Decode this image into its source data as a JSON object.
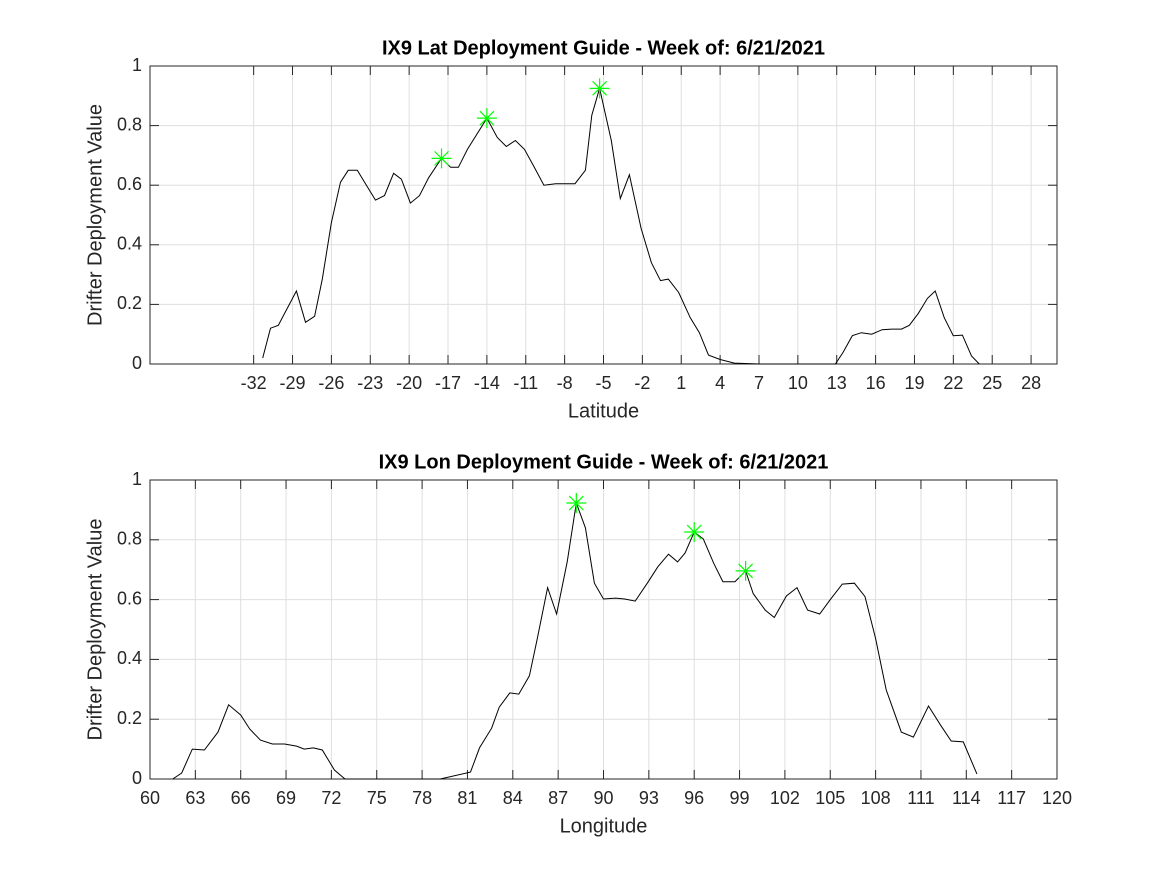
{
  "chart_data": [
    {
      "type": "line",
      "title": "IX9 Lat Deployment Guide - Week of: 6/21/2021",
      "x_label": "Latitude",
      "y_label": "Drifter Deployment Value",
      "xlim": [
        -40,
        30
      ],
      "xticks": [
        -32,
        -29,
        -26,
        -23,
        -20,
        -17,
        -14,
        -11,
        -8,
        -5,
        -2,
        1,
        4,
        7,
        10,
        13,
        16,
        19,
        22,
        25,
        28
      ],
      "ylim": [
        0,
        1
      ],
      "yticks": [
        0,
        0.2,
        0.4,
        0.6,
        0.8,
        1
      ],
      "grid": true,
      "series": [
        {
          "color": "#000000",
          "marker": "none",
          "x": [
            -31.3,
            -30.7,
            -30.1,
            -28.7,
            -28.0,
            -27.3,
            -26.7,
            -26.0,
            -25.3,
            -24.7,
            -24.0,
            -23.3,
            -22.6,
            -21.9,
            -21.2,
            -20.6,
            -19.9,
            -19.2,
            -18.5,
            -17.5,
            -16.8,
            -16.2,
            -15.5,
            -14.0,
            -13.2,
            -12.5,
            -11.8,
            -11.1,
            -10.4,
            -9.6,
            -8.7,
            -7.8,
            -7.2,
            -6.4,
            -5.9,
            -5.3,
            -4.4,
            -3.7,
            -3.0,
            -2.1,
            -1.3,
            -0.6,
            0.0,
            0.8,
            1.7,
            2.4,
            3.1,
            4.0,
            5.1,
            7.0,
            9.0,
            12.9,
            13.5,
            14.2,
            14.9,
            15.7,
            16.5,
            17.3,
            18.0,
            18.6,
            19.3,
            20.0,
            20.6,
            21.3,
            22.0,
            22.7,
            23.4,
            24.0
          ],
          "values": [
            0.02,
            0.12,
            0.13,
            0.245,
            0.14,
            0.16,
            0.285,
            0.475,
            0.61,
            0.65,
            0.65,
            0.6,
            0.55,
            0.565,
            0.64,
            0.62,
            0.54,
            0.565,
            0.625,
            0.69,
            0.66,
            0.66,
            0.72,
            0.825,
            0.76,
            0.73,
            0.75,
            0.72,
            0.665,
            0.6,
            0.605,
            0.605,
            0.605,
            0.65,
            0.835,
            0.925,
            0.75,
            0.555,
            0.635,
            0.455,
            0.34,
            0.28,
            0.285,
            0.24,
            0.155,
            0.105,
            0.03,
            0.015,
            0.003,
            0,
            0,
            0,
            0.04,
            0.095,
            0.105,
            0.1,
            0.115,
            0.117,
            0.117,
            0.13,
            0.17,
            0.22,
            0.245,
            0.155,
            0.095,
            0.097,
            0.027,
            0
          ]
        },
        {
          "color": "#00ff00",
          "marker": "*",
          "x": [
            -17.5,
            -14.0,
            -5.3
          ],
          "values": [
            0.69,
            0.825,
            0.925
          ]
        }
      ]
    },
    {
      "type": "line",
      "title": "IX9 Lon Deployment Guide - Week of: 6/21/2021",
      "x_label": "Longitude",
      "y_label": "Drifter Deployment Value",
      "xlim": [
        60,
        120
      ],
      "xticks": [
        60,
        63,
        66,
        69,
        72,
        75,
        78,
        81,
        84,
        87,
        90,
        93,
        96,
        99,
        102,
        105,
        108,
        111,
        114,
        117,
        120
      ],
      "ylim": [
        0,
        1
      ],
      "yticks": [
        0,
        0.2,
        0.4,
        0.6,
        0.8,
        1
      ],
      "grid": true,
      "series": [
        {
          "color": "#000000",
          "marker": "none",
          "x": [
            61.5,
            62.1,
            62.8,
            63.6,
            64.5,
            65.2,
            66.0,
            66.6,
            67.3,
            68.1,
            68.9,
            69.7,
            70.2,
            70.8,
            71.4,
            72.2,
            72.9,
            75.9,
            77.9,
            79.2,
            81.2,
            81.8,
            82.6,
            83.1,
            83.8,
            84.4,
            85.1,
            85.6,
            86.3,
            86.9,
            87.6,
            88.2,
            88.8,
            89.4,
            90.0,
            90.8,
            91.4,
            92.1,
            92.9,
            93.6,
            94.3,
            94.9,
            95.4,
            96.0,
            96.6,
            97.3,
            97.9,
            98.7,
            99.4,
            99.9,
            100.7,
            101.3,
            102.1,
            102.8,
            103.5,
            104.3,
            105.0,
            105.8,
            106.6,
            107.3,
            108.0,
            108.7,
            109.7,
            110.5,
            111.5,
            112.3,
            113.0,
            113.8,
            114.7
          ],
          "values": [
            0,
            0.02,
            0.1,
            0.097,
            0.157,
            0.248,
            0.214,
            0.167,
            0.13,
            0.117,
            0.117,
            0.11,
            0.1,
            0.104,
            0.097,
            0.03,
            0,
            0,
            0,
            0,
            0.023,
            0.104,
            0.17,
            0.24,
            0.288,
            0.284,
            0.345,
            0.465,
            0.64,
            0.552,
            0.726,
            0.923,
            0.84,
            0.655,
            0.602,
            0.605,
            0.602,
            0.595,
            0.655,
            0.71,
            0.752,
            0.726,
            0.756,
            0.826,
            0.803,
            0.72,
            0.66,
            0.66,
            0.696,
            0.62,
            0.565,
            0.54,
            0.612,
            0.64,
            0.565,
            0.552,
            0.6,
            0.652,
            0.655,
            0.61,
            0.47,
            0.298,
            0.157,
            0.14,
            0.244,
            0.18,
            0.127,
            0.124,
            0.017
          ]
        },
        {
          "color": "#00ff00",
          "marker": "*",
          "x": [
            88.2,
            96.0,
            99.4
          ],
          "values": [
            0.923,
            0.826,
            0.696
          ]
        }
      ]
    }
  ]
}
